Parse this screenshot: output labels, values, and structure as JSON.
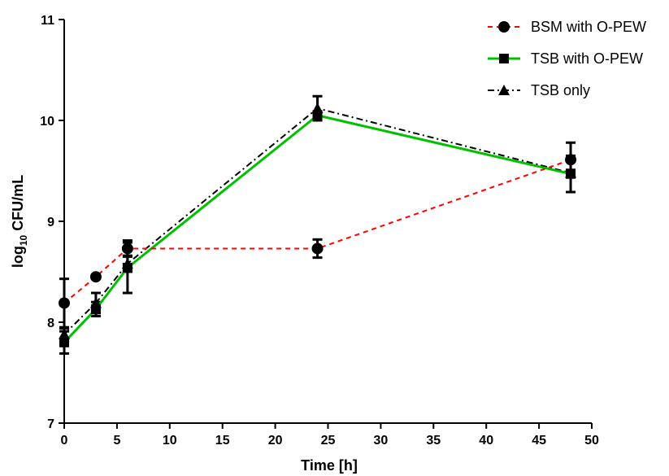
{
  "chart_data": {
    "type": "line",
    "xlabel": "Time [h]",
    "ylabel": {
      "prefix": "log",
      "subscript": "10",
      "suffix": " CFU/mL"
    },
    "xlim": [
      0,
      50
    ],
    "ylim": [
      7,
      11
    ],
    "xticks": [
      "0",
      "5",
      "10",
      "15",
      "20",
      "25",
      "30",
      "35",
      "40",
      "45",
      "50"
    ],
    "yticks": [
      "7",
      "8",
      "9",
      "10",
      "11"
    ],
    "grid": false,
    "legend_position": "top-right",
    "series": [
      {
        "name": "BSM with O-PEW",
        "color": "#ff0000",
        "line_style": "dashed",
        "marker": "circle",
        "x": [
          0,
          3,
          6,
          24,
          48
        ],
        "y": [
          8.19,
          8.45,
          8.73,
          8.73,
          9.61
        ],
        "err": [
          0.24,
          0.0,
          0.08,
          0.09,
          0.17
        ]
      },
      {
        "name": "TSB with O-PEW",
        "color": "#00c000",
        "line_style": "solid",
        "marker": "square",
        "x": [
          0,
          3,
          6,
          24,
          48
        ],
        "y": [
          7.8,
          8.13,
          8.54,
          10.05,
          9.47
        ],
        "err": [
          0.11,
          0.07,
          0.25,
          0.04,
          0.18
        ]
      },
      {
        "name": "TSB only",
        "color": "#000000",
        "line_style": "dashdot",
        "marker": "triangle",
        "x": [
          0,
          3,
          6,
          24,
          48
        ],
        "y": [
          7.88,
          8.19,
          8.58,
          10.12,
          9.48
        ],
        "err": [
          0.06,
          0.1,
          0.08,
          0.12,
          0.03
        ]
      }
    ]
  }
}
